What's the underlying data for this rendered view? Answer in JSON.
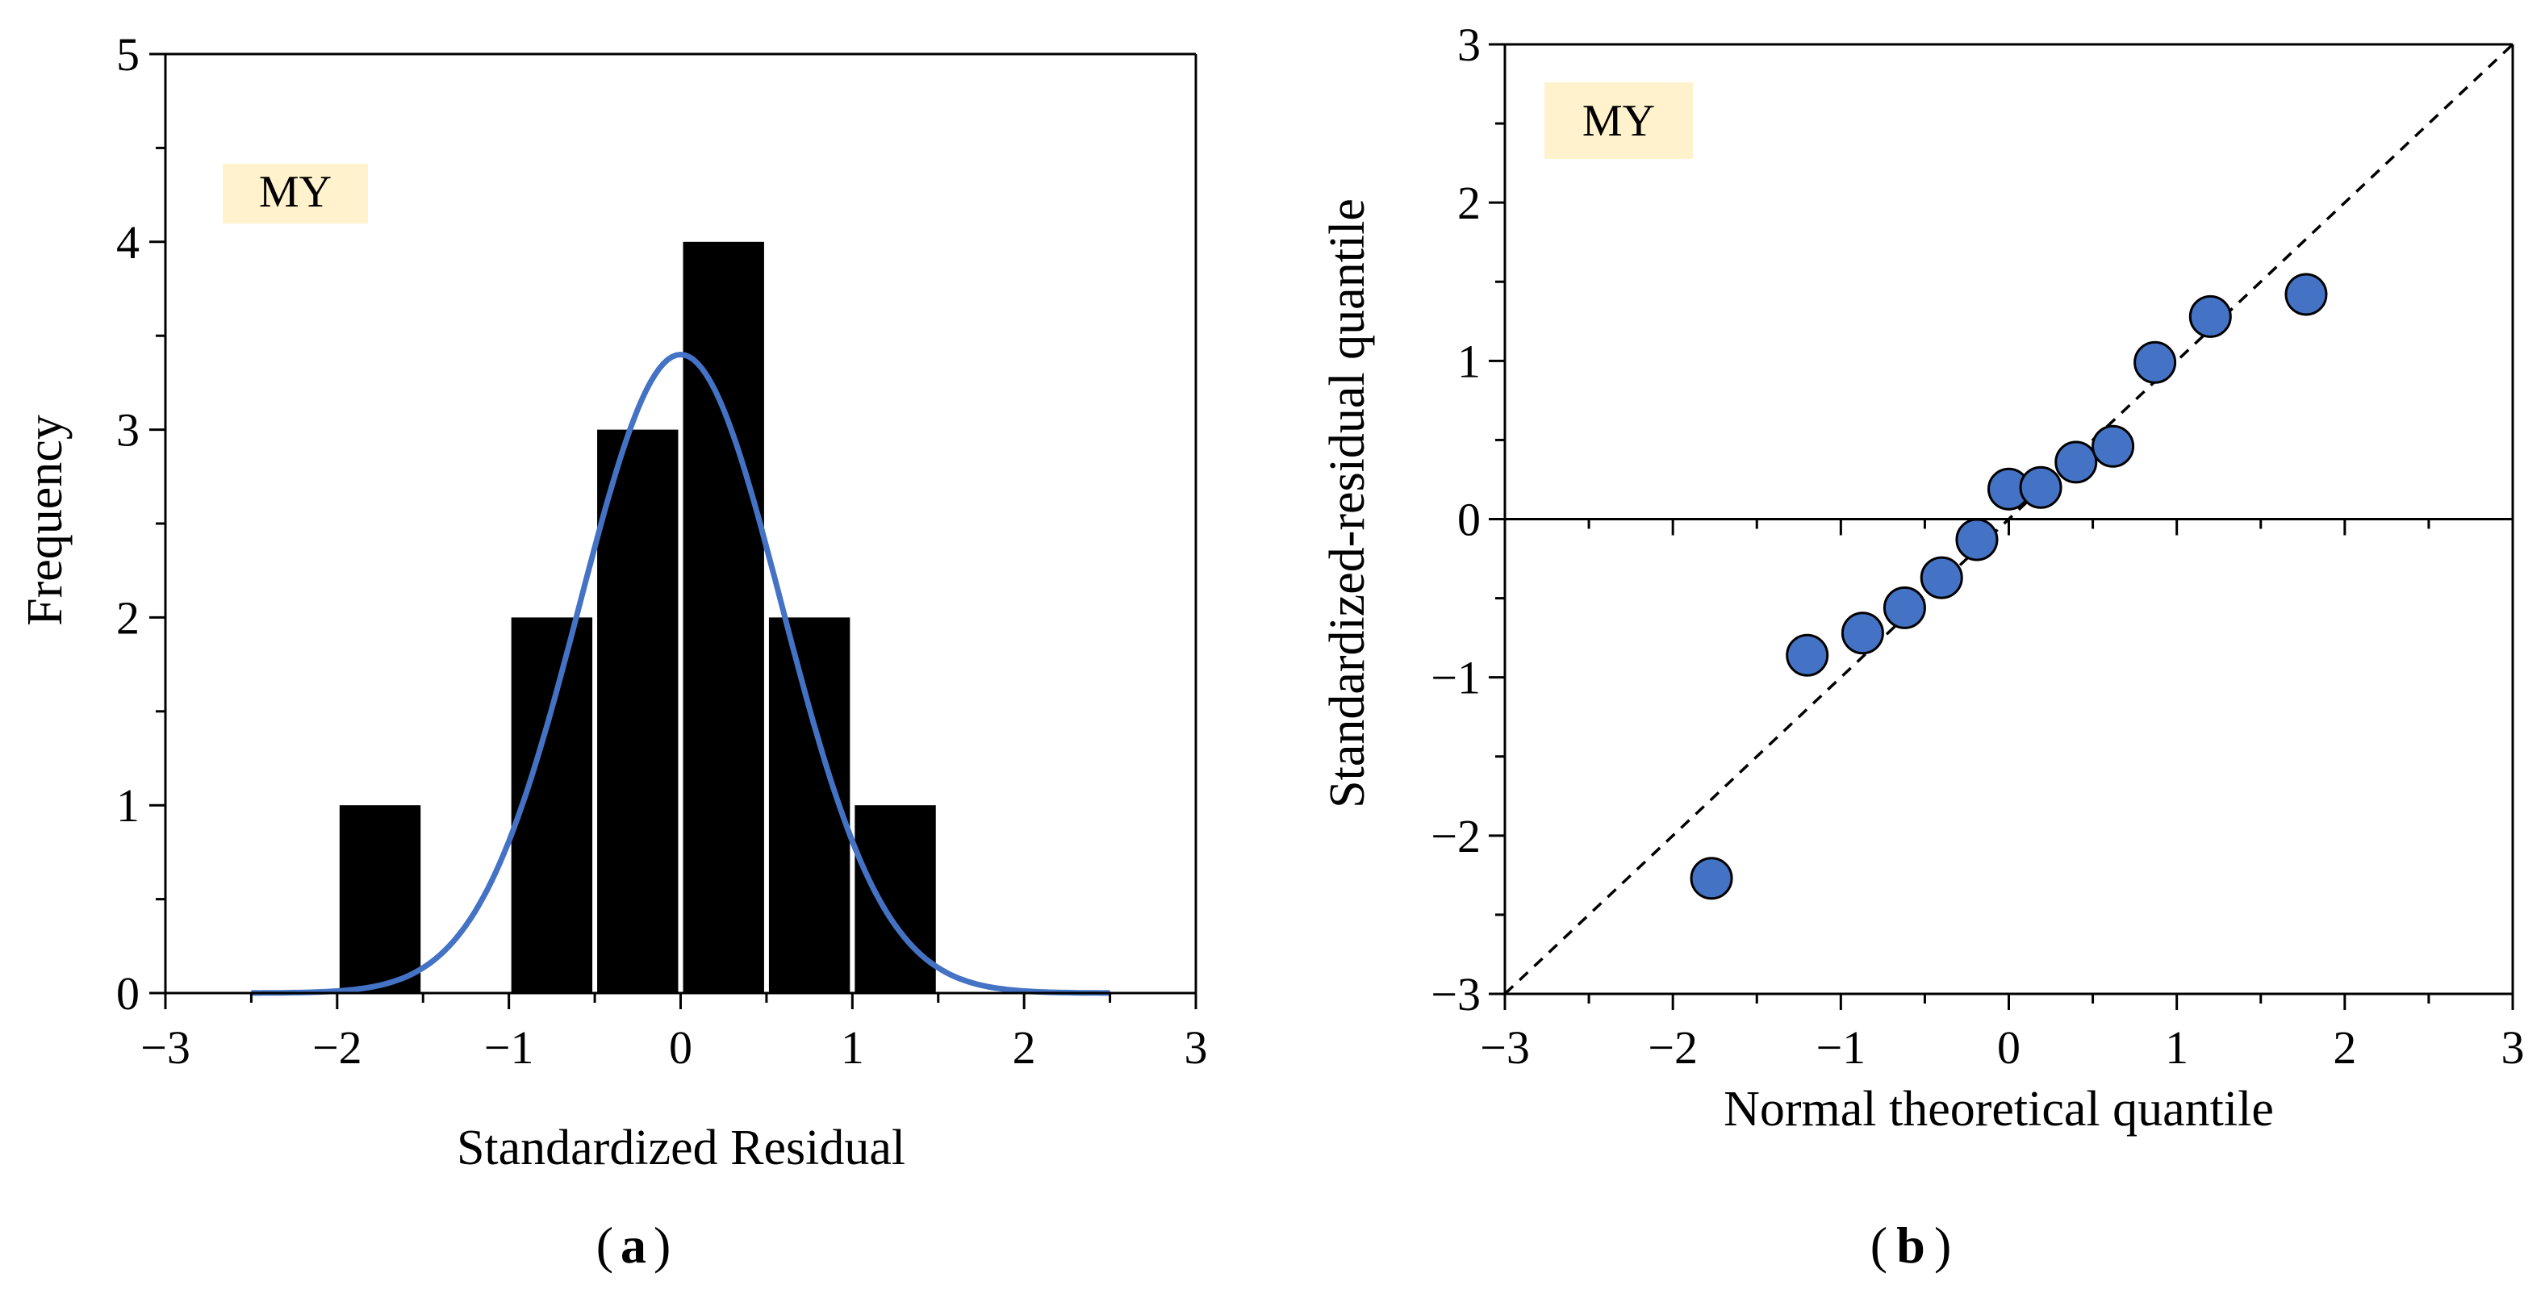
{
  "colors": {
    "bar": "#000000",
    "normal_curve": "#4472C4",
    "marker_fill": "#4472C4",
    "marker_stroke": "#000000",
    "label_box": "#FFF2CC",
    "reference_line": "#000000"
  },
  "panels": {
    "a": {
      "caption": "a",
      "tag": "MY"
    },
    "b": {
      "caption": "b",
      "tag": "MY"
    }
  },
  "chart_data": [
    {
      "type": "bar",
      "xlabel": "Standardized Residual",
      "ylabel": "Frequency",
      "xlim": [
        -3,
        3
      ],
      "ylim": [
        0,
        5
      ],
      "xticks": [
        -3,
        -2,
        -1,
        0,
        1,
        2,
        3
      ],
      "xtick_labels": [
        "−3",
        "−2",
        "−1",
        "0",
        "1",
        "2",
        "3"
      ],
      "yticks": [
        0,
        1,
        2,
        3,
        4,
        5
      ],
      "ytick_labels": [
        "0",
        "1",
        "2",
        "3",
        "4",
        "5"
      ],
      "grid": false,
      "bins": [
        {
          "from": -2.0,
          "to": -1.5,
          "value": 1
        },
        {
          "from": -1.0,
          "to": -0.5,
          "value": 2
        },
        {
          "from": -0.5,
          "to": 0.0,
          "value": 3
        },
        {
          "from": 0.0,
          "to": 0.5,
          "value": 4
        },
        {
          "from": 0.5,
          "to": 1.0,
          "value": 2
        },
        {
          "from": 1.0,
          "to": 1.5,
          "value": 1
        }
      ],
      "curve": {
        "type": "normal",
        "mean": 0,
        "sd": 0.59,
        "peak": 3.4,
        "x_range": [
          -2.5,
          2.5
        ]
      }
    },
    {
      "type": "scatter",
      "xlabel": "Normal theoretical quantile",
      "ylabel": "Standardized-residual quantile",
      "xlim": [
        -3,
        3
      ],
      "ylim": [
        -3,
        3
      ],
      "xticks": [
        -3,
        -2,
        -1,
        0,
        1,
        2,
        3
      ],
      "xtick_labels": [
        "−3",
        "−2",
        "−1",
        "0",
        "1",
        "2",
        "3"
      ],
      "yticks": [
        -3,
        -2,
        -1,
        0,
        1,
        2,
        3
      ],
      "ytick_labels": [
        "−3",
        "−2",
        "−1",
        "0",
        "1",
        "2",
        "3"
      ],
      "grid": false,
      "points": [
        {
          "x": -1.77,
          "y": -2.27
        },
        {
          "x": -1.2,
          "y": -0.86
        },
        {
          "x": -0.87,
          "y": -0.72
        },
        {
          "x": -0.62,
          "y": -0.56
        },
        {
          "x": -0.4,
          "y": -0.37
        },
        {
          "x": -0.19,
          "y": -0.13
        },
        {
          "x": 0.0,
          "y": 0.19
        },
        {
          "x": 0.19,
          "y": 0.2
        },
        {
          "x": 0.4,
          "y": 0.36
        },
        {
          "x": 0.62,
          "y": 0.46
        },
        {
          "x": 0.87,
          "y": 0.99
        },
        {
          "x": 1.2,
          "y": 1.28
        },
        {
          "x": 1.77,
          "y": 1.42
        }
      ],
      "reference_line": {
        "from": [
          -3,
          -3
        ],
        "to": [
          3,
          3
        ],
        "style": "dashed"
      }
    }
  ]
}
